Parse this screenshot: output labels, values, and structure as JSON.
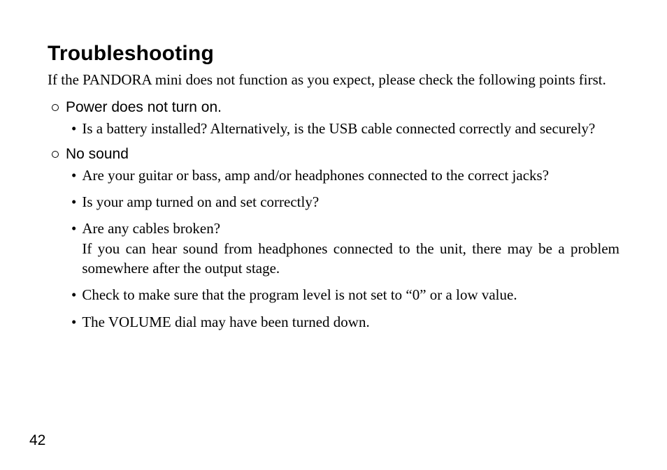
{
  "page": {
    "number": "42",
    "background_color": "#ffffff",
    "text_color": "#000000"
  },
  "heading": "Troubleshooting",
  "intro": "If the PANDORA mini does not function as you expect, please check the following points first.",
  "sections": [
    {
      "title": "Power does not turn on.",
      "items": [
        "Is a battery installed? Alternatively, is the USB cable connected correctly and securely?"
      ]
    },
    {
      "title": "No sound",
      "items": [
        "Are your guitar or bass, amp and/or headphones connected to the correct jacks?",
        "Is your amp turned on and set correctly?",
        "Are any cables broken?\nIf you can hear sound from headphones connected to the unit, there may be a problem somewhere after the output stage.",
        "Check to make sure that the program level is not set to “0” or a low value.",
        "The VOLUME dial may have been turned down."
      ]
    }
  ],
  "typography": {
    "heading_font": "Arial",
    "heading_size_pt": 22,
    "heading_weight": "bold",
    "body_font": "Georgia/Palatino-like serif",
    "body_size_pt": 16,
    "section_title_font": "Arial",
    "section_title_size_pt": 16,
    "section_title_weight": "normal",
    "page_number_font": "Arial",
    "page_number_size_pt": 16
  }
}
